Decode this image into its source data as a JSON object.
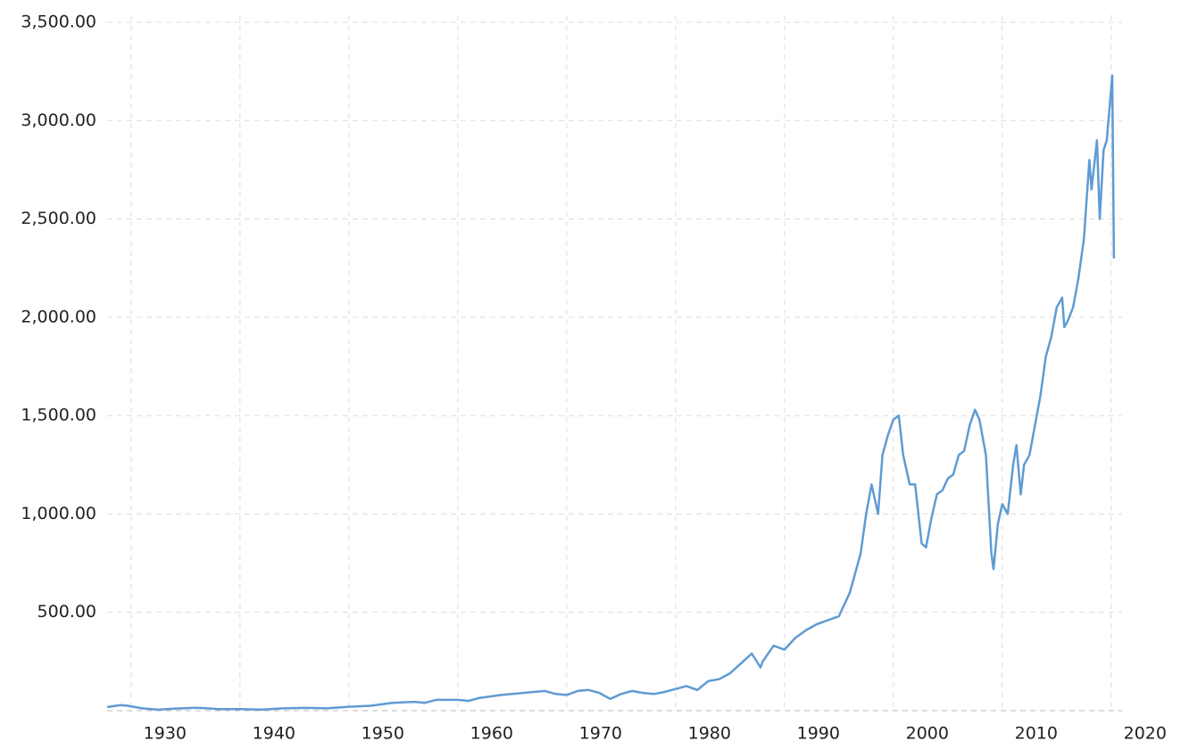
{
  "chart_data": {
    "type": "line",
    "x": [
      1927.8,
      1929.0,
      1929.7,
      1931,
      1932.5,
      1934,
      1936,
      1937,
      1938,
      1940,
      1942,
      1944,
      1946,
      1948,
      1950,
      1952,
      1954,
      1956,
      1957,
      1958,
      1960,
      1961,
      1962,
      1964,
      1966,
      1967,
      1968,
      1969,
      1970,
      1971,
      1972,
      1973,
      1974,
      1975,
      1976,
      1977,
      1978,
      1979,
      1980,
      1981,
      1982,
      1983,
      1984,
      1985,
      1986,
      1987,
      1987.8,
      1988,
      1989,
      1990,
      1991,
      1992,
      1993,
      1994,
      1995,
      1996,
      1997,
      1997.5,
      1998,
      1998.6,
      1999,
      1999.5,
      2000,
      2000.5,
      2000.9,
      2001.5,
      2002,
      2002.6,
      2003,
      2003.5,
      2004,
      2004.5,
      2005,
      2005.5,
      2006,
      2006.5,
      2007,
      2007.5,
      2007.9,
      2008.5,
      2009,
      2009.2,
      2009.6,
      2010,
      2010.5,
      2011,
      2011.3,
      2011.7,
      2012,
      2012.5,
      2013,
      2013.5,
      2014,
      2014.5,
      2015,
      2015.5,
      2015.7,
      2016,
      2016.5,
      2017,
      2017.5,
      2018,
      2018.2,
      2018.7,
      2018.95,
      2019.3,
      2019.6,
      2019.9,
      2020.1,
      2020.25
    ],
    "series": [
      {
        "color": "#5f9bd3",
        "values": [
          18,
          28,
          25,
          12,
          5,
          10,
          15,
          12,
          8,
          8,
          5,
          12,
          14,
          12,
          20,
          25,
          40,
          45,
          40,
          55,
          55,
          50,
          65,
          80,
          90,
          95,
          100,
          85,
          80,
          100,
          105,
          90,
          60,
          85,
          100,
          90,
          85,
          95,
          110,
          125,
          105,
          150,
          160,
          190,
          240,
          290,
          220,
          250,
          330,
          310,
          370,
          410,
          440,
          460,
          480,
          600,
          800,
          1000,
          1150,
          1000,
          1300,
          1400,
          1480,
          1500,
          1300,
          1150,
          1150,
          850,
          830,
          980,
          1100,
          1120,
          1180,
          1200,
          1300,
          1320,
          1450,
          1530,
          1480,
          1300,
          800,
          720,
          950,
          1050,
          1000,
          1250,
          1350,
          1100,
          1250,
          1300,
          1450,
          1600,
          1800,
          1900,
          2050,
          2100,
          1950,
          1980,
          2050,
          2200,
          2400,
          2800,
          2650,
          2900,
          2500,
          2850,
          2900,
          3100,
          3230,
          2300
        ]
      }
    ],
    "xlim": [
      1927.8,
      2021.0
    ],
    "xticks": [
      1930,
      1940,
      1950,
      1960,
      1970,
      1980,
      1990,
      2000,
      2010,
      2020
    ],
    "ylim": [
      0,
      3500
    ],
    "yticks": [
      {
        "value": 500,
        "label": "500.00"
      },
      {
        "value": 1000,
        "label": "1,000.00"
      },
      {
        "value": 1500,
        "label": "1,500.00"
      },
      {
        "value": 2000,
        "label": "2,000.00"
      },
      {
        "value": 2500,
        "label": "2,500.00"
      },
      {
        "value": 3000,
        "label": "3,000.00"
      },
      {
        "value": 3500,
        "label": "3,500.00"
      }
    ],
    "grid": true
  }
}
